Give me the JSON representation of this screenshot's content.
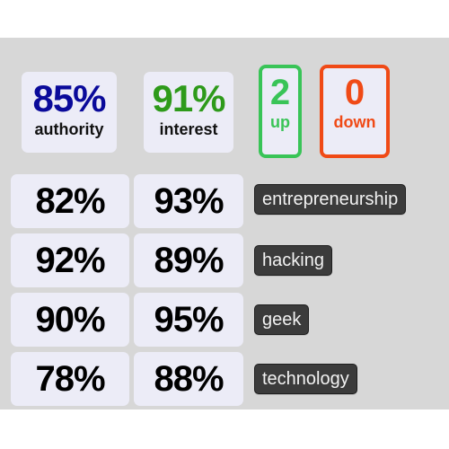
{
  "summary": {
    "authority": {
      "value": "85%",
      "label": "authority",
      "color": "#0a0a9a"
    },
    "interest": {
      "value": "91%",
      "label": "interest",
      "color": "#2e9a1a"
    },
    "up": {
      "value": "2",
      "label": "up",
      "color": "#39c457"
    },
    "down": {
      "value": "0",
      "label": "down",
      "color": "#f04a16"
    }
  },
  "rows": [
    {
      "authority": "82%",
      "interest": "93%",
      "tag": "entrepreneurship"
    },
    {
      "authority": "92%",
      "interest": "89%",
      "tag": "hacking"
    },
    {
      "authority": "90%",
      "interest": "95%",
      "tag": "geek"
    },
    {
      "authority": "78%",
      "interest": "88%",
      "tag": "technology"
    }
  ]
}
